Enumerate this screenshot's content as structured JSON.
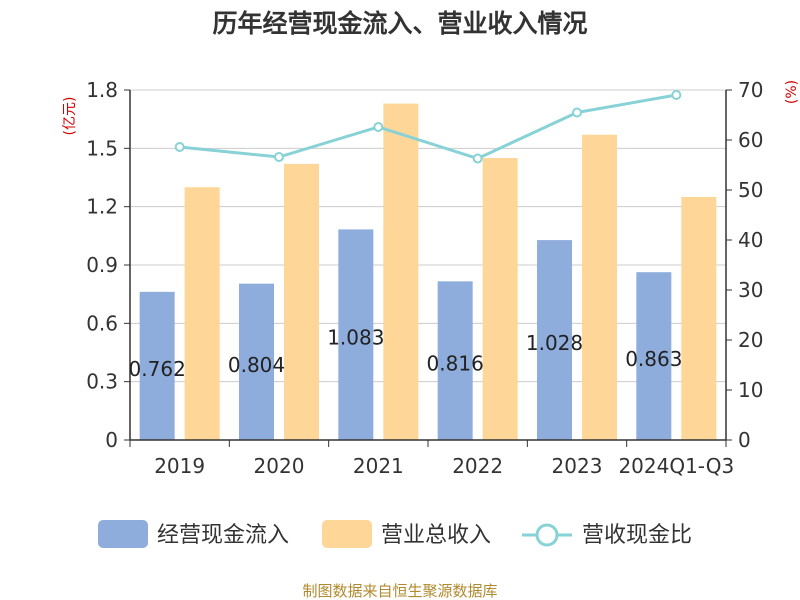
{
  "chart_data": {
    "type": "bar",
    "title": "历年经营现金流入、营业收入情况",
    "categories": [
      "2019",
      "2020",
      "2021",
      "2022",
      "2023",
      "2024Q1-Q3"
    ],
    "left_axis": {
      "unit": "(亿元)",
      "ylim": [
        0,
        1.8
      ],
      "ticks": [
        "0",
        "0.3",
        "0.6",
        "0.9",
        "1.2",
        "1.5",
        "1.8"
      ]
    },
    "right_axis": {
      "unit": "(%)",
      "ylim": [
        0,
        70
      ],
      "ticks": [
        "0",
        "10",
        "20",
        "30",
        "40",
        "50",
        "60",
        "70"
      ]
    },
    "series": [
      {
        "name": "经营现金流入",
        "type": "bar",
        "axis": "left",
        "values": [
          0.762,
          0.804,
          1.083,
          0.816,
          1.028,
          0.863
        ],
        "labels": [
          "0.762",
          "0.804",
          "1.083",
          "0.816",
          "1.028",
          "0.863"
        ]
      },
      {
        "name": "营业总收入",
        "type": "bar",
        "axis": "left",
        "values": [
          1.3,
          1.42,
          1.73,
          1.45,
          1.57,
          1.25
        ]
      },
      {
        "name": "营收现金比",
        "type": "line",
        "axis": "right",
        "values": [
          58.6,
          56.6,
          62.6,
          56.3,
          65.5,
          69.0
        ]
      }
    ],
    "grid": true,
    "legend_position": "bottom"
  },
  "colors": {
    "cash": "#8eaddc",
    "revenue": "#fdd698",
    "ratio": "#87d2d6"
  },
  "source": "制图数据来自恒生聚源数据库"
}
